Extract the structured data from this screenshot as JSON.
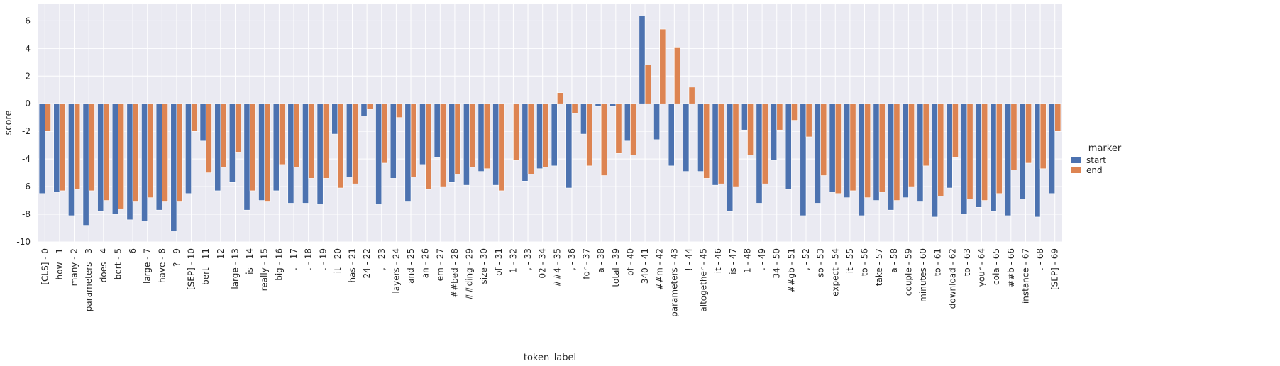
{
  "chart_data": {
    "type": "bar",
    "xlabel": "token_label",
    "ylabel": "score",
    "ylim": [
      -10,
      7.2
    ],
    "yticks": [
      -10,
      -8,
      -6,
      -4,
      -2,
      0,
      2,
      4,
      6
    ],
    "grid": true,
    "legend_title": "marker",
    "legend_position": "right",
    "categories": [
      "[CLS] - 0",
      "how - 1",
      "many - 2",
      "parameters - 3",
      "does - 4",
      "bert - 5",
      "- - 6",
      "large - 7",
      "have - 8",
      "? - 9",
      "[SEP] - 10",
      "bert - 11",
      "- - 12",
      "large - 13",
      "is - 14",
      "really - 15",
      "big - 16",
      ". - 17",
      ". - 18",
      ". - 19",
      "it - 20",
      "has - 21",
      "24 - 22",
      ", - 23",
      "layers - 24",
      "and - 25",
      "an - 26",
      "em - 27",
      "##bed - 28",
      "##ding - 29",
      "size - 30",
      "of - 31",
      "1 - 32",
      ", - 33",
      "02 - 34",
      "##4 - 35",
      ", - 36",
      "for - 37",
      "a - 38",
      "total - 39",
      "of - 40",
      "340 - 41",
      "##m - 42",
      "parameters - 43",
      "! - 44",
      "altogether - 45",
      "it - 46",
      "is - 47",
      "1 - 48",
      ". - 49",
      "34 - 50",
      "##gb - 51",
      ", - 52",
      "so - 53",
      "expect - 54",
      "it - 55",
      "to - 56",
      "take - 57",
      "a - 58",
      "couple - 59",
      "minutes - 60",
      "to - 61",
      "download - 62",
      "to - 63",
      "your - 64",
      "cola - 65",
      "##b - 66",
      "instance - 67",
      ". - 68",
      "[SEP] - 69"
    ],
    "series": [
      {
        "name": "start",
        "color": "#4c72b0",
        "values": [
          -6.5,
          -6.4,
          -8.1,
          -8.8,
          -7.8,
          -8.0,
          -8.4,
          -8.5,
          -7.7,
          -9.2,
          -6.5,
          -2.7,
          -6.3,
          -5.7,
          -7.7,
          -7.0,
          -6.3,
          -7.2,
          -7.2,
          -7.3,
          -2.2,
          -5.3,
          -0.9,
          -7.3,
          -5.4,
          -7.1,
          -4.4,
          -3.9,
          -5.7,
          -5.9,
          -4.9,
          -5.9,
          0.0,
          -5.6,
          -4.7,
          -4.5,
          -6.1,
          -2.2,
          -0.2,
          -0.2,
          -2.7,
          6.4,
          -2.6,
          -4.5,
          -4.9,
          -4.9,
          -5.9,
          -7.8,
          -1.9,
          -7.2,
          -4.1,
          -6.2,
          -8.1,
          -7.2,
          -6.4,
          -6.8,
          -8.1,
          -7.0,
          -7.7,
          -6.8,
          -7.1,
          -8.2,
          -6.1,
          -8.0,
          -7.5,
          -7.8,
          -8.1,
          -6.9,
          -8.2,
          -6.5
        ]
      },
      {
        "name": "end",
        "color": "#dd8452",
        "values": [
          -2.0,
          -6.3,
          -6.2,
          -6.3,
          -7.0,
          -7.6,
          -7.1,
          -6.8,
          -7.1,
          -7.1,
          -2.0,
          -5.0,
          -4.6,
          -3.5,
          -6.3,
          -7.1,
          -4.4,
          -4.6,
          -5.4,
          -5.4,
          -6.1,
          -5.8,
          -0.4,
          -4.3,
          -1.0,
          -5.3,
          -6.2,
          -6.0,
          -5.1,
          -4.6,
          -4.7,
          -6.3,
          -4.1,
          -5.1,
          -4.6,
          0.8,
          -0.7,
          -4.5,
          -5.2,
          -3.6,
          -3.7,
          2.8,
          5.4,
          4.1,
          1.2,
          -5.4,
          -5.8,
          -6.0,
          -3.7,
          -5.8,
          -1.9,
          -1.2,
          -2.4,
          -5.2,
          -6.5,
          -6.3,
          -6.8,
          -6.4,
          -7.0,
          -6.0,
          -4.5,
          -6.7,
          -3.9,
          -6.9,
          -7.0,
          -6.5,
          -4.8,
          -4.3,
          -4.7,
          -2.0
        ]
      }
    ]
  }
}
